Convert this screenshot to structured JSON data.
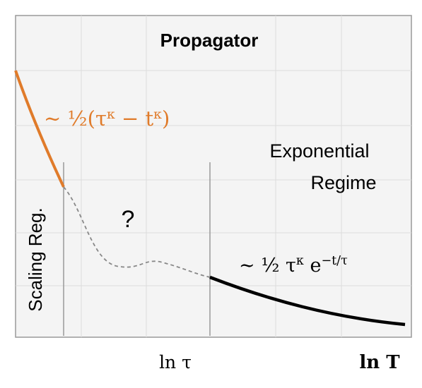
{
  "title": "Propagator",
  "orange_formula": [
    {
      "text": "∼ ½(τ"
    },
    {
      "text": "κ",
      "sup": true
    },
    {
      "text": " − t"
    },
    {
      "text": "κ",
      "sup": true
    },
    {
      "text": ")"
    }
  ],
  "regime_label": [
    "Exponential",
    "Regime"
  ],
  "question": "?",
  "scaling_label": "Scaling Reg.",
  "black_formula": [
    {
      "text": "∼ ½ τ"
    },
    {
      "text": "κ",
      "sup": true
    },
    {
      "text": " e"
    },
    {
      "text": "−t/τ",
      "sup": true
    }
  ],
  "x_labels": [
    "ln τ",
    "ln T"
  ]
}
